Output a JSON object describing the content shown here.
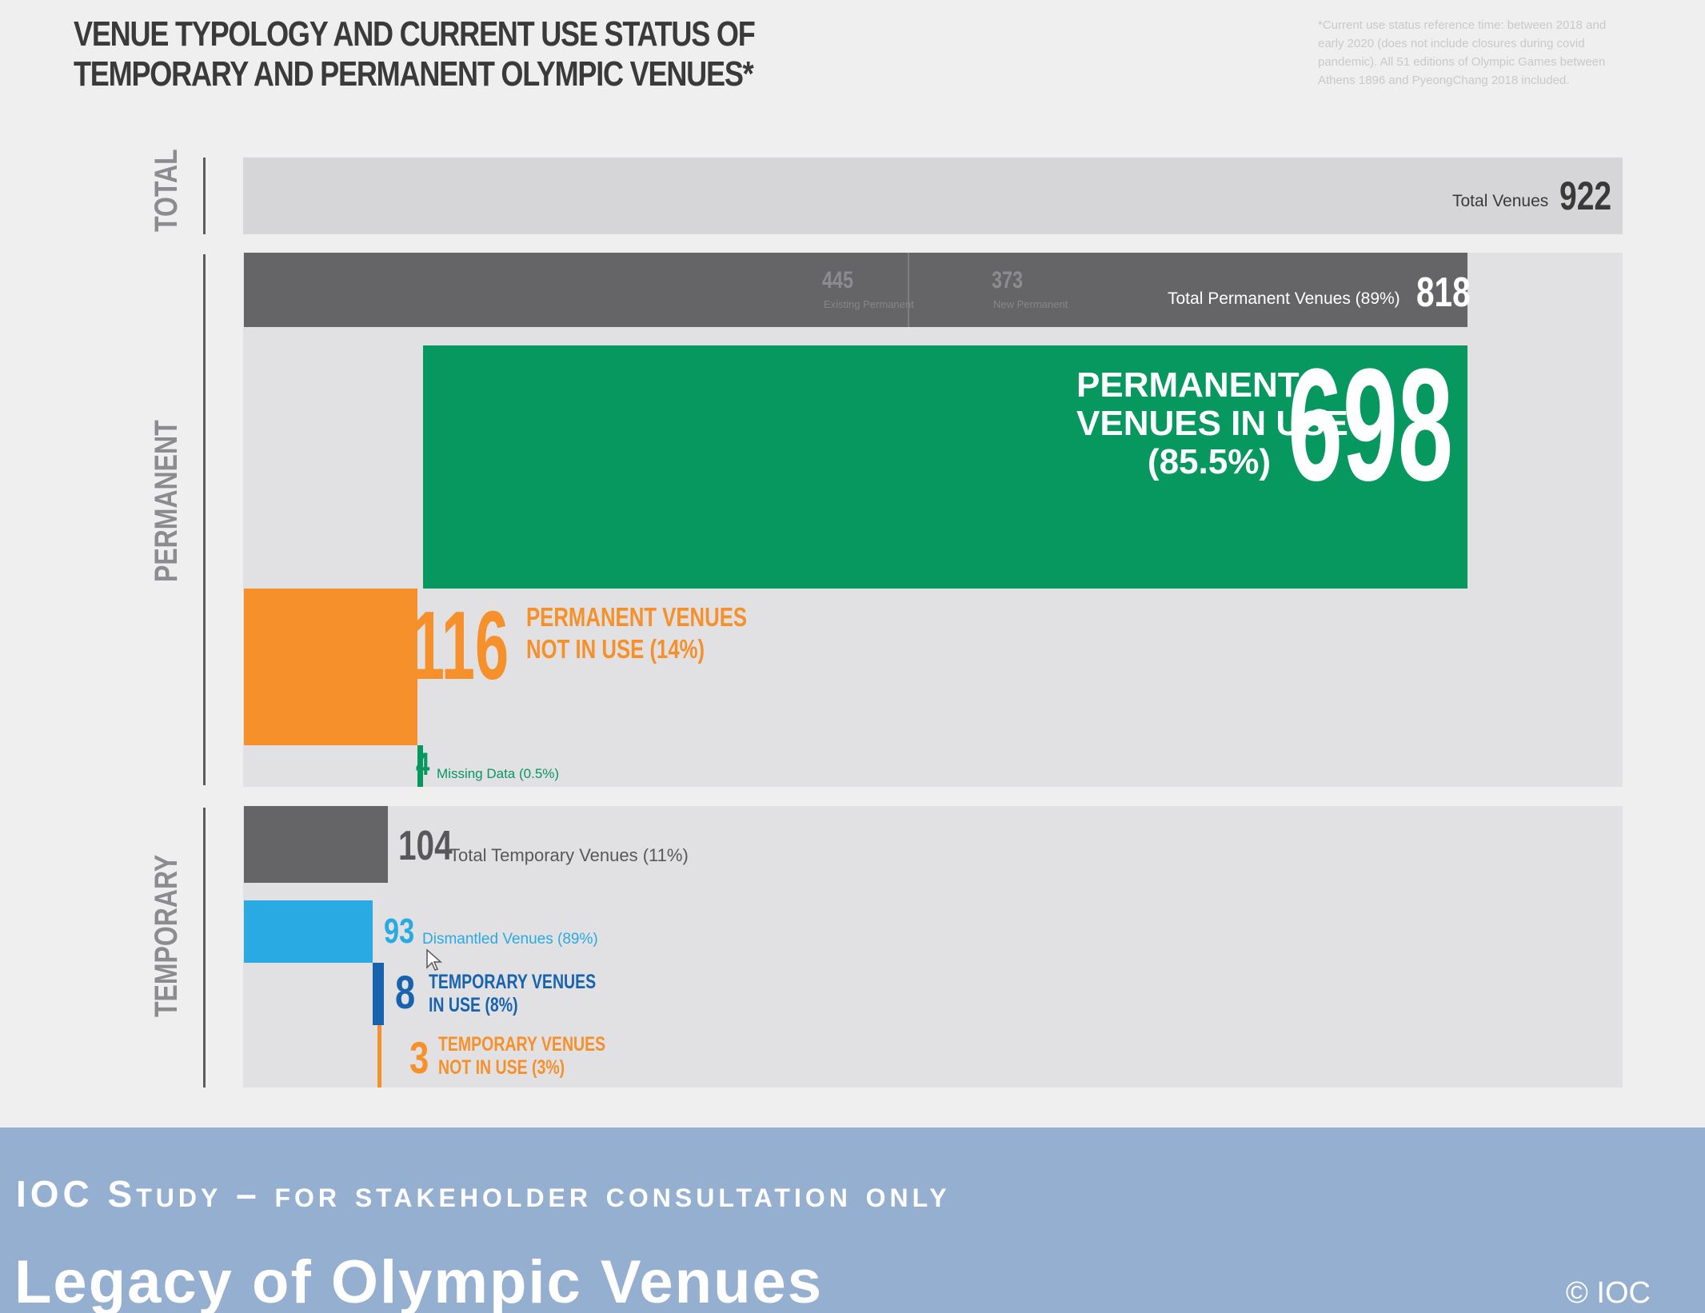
{
  "title_line1": "VENUE TYPOLOGY AND CURRENT USE STATUS OF",
  "title_line2": "TEMPORARY AND PERMANENT OLYMPIC VENUES*",
  "footnote": "*Current use status reference time: between 2018 and early 2020 (does not include closures during covid pandemic). All 51 editions of Olympic Games between Athens 1896 and PyeongChang 2018 included.",
  "colors": {
    "gray_dark": "#656568",
    "green": "#06985f",
    "orange": "#f6902a",
    "light_blue": "#29aae2",
    "dark_blue": "#1763ae",
    "panel": "#e1e1e3",
    "banner": "#94afd0"
  },
  "chart_data": {
    "type": "bar",
    "orientation": "horizontal",
    "sections": [
      {
        "name": "TOTAL",
        "bars": [
          {
            "label": "Total Venues",
            "value": 922
          }
        ]
      },
      {
        "name": "PERMANENT",
        "bars": [
          {
            "label": "Total Permanent Venues (89%)",
            "value": 818,
            "segments": [
              {
                "label": "Existing Permanent",
                "value": 445
              },
              {
                "label": "New Permanent",
                "value": 373
              }
            ]
          },
          {
            "label": "PERMANENT VENUES IN USE (85.5%)",
            "value": 698
          },
          {
            "label": "PERMANENT VENUES NOT IN USE (14%)",
            "value": 116
          },
          {
            "label": "Missing Data (0.5%)",
            "value": 4
          }
        ]
      },
      {
        "name": "TEMPORARY",
        "bars": [
          {
            "label": "Total Temporary Venues (11%)",
            "value": 104
          },
          {
            "label": "Dismantled Venues (89%)",
            "value": 93
          },
          {
            "label": "TEMPORARY VENUES IN USE (8%)",
            "value": 8
          },
          {
            "label": "TEMPORARY VENUES NOT IN USE (3%)",
            "value": 3
          }
        ]
      }
    ]
  },
  "labels": {
    "total_section": "TOTAL",
    "permanent_section": "PERMANENT",
    "temporary_section": "TEMPORARY",
    "total_venues_text": "Total Venues",
    "total_venues_value": "922",
    "existing_value": "445",
    "existing_text": "Existing Permanent",
    "new_value": "373",
    "new_text": "New Permanent",
    "total_perm_text": "Total Permanent Venues (89%)",
    "total_perm_value": "818",
    "perm_in_use_l1": "PERMANENT",
    "perm_in_use_l2": "VENUES IN USE",
    "perm_in_use_l3": "(85.5%)",
    "perm_in_use_value": "698",
    "perm_not_value": "116",
    "perm_not_l1": "PERMANENT VENUES",
    "perm_not_l2": "NOT IN USE (14%)",
    "missing_value": "4",
    "missing_text": "Missing Data (0.5%)",
    "temp_total_value": "104",
    "temp_total_text": "Total Temporary Venues (11%)",
    "dismantled_value": "93",
    "dismantled_text": "Dismantled Venues (89%)",
    "temp_in_use_value": "8",
    "temp_in_use_l1": "TEMPORARY VENUES",
    "temp_in_use_l2": "IN USE (8%)",
    "temp_not_value": "3",
    "temp_not_l1": "TEMPORARY VENUES",
    "temp_not_l2": "NOT IN USE (3%)"
  },
  "banner": {
    "kicker": "IOC Study – for stakeholder consultation only",
    "title": "Legacy of Olympic Venues",
    "copyright": "© IOC"
  }
}
